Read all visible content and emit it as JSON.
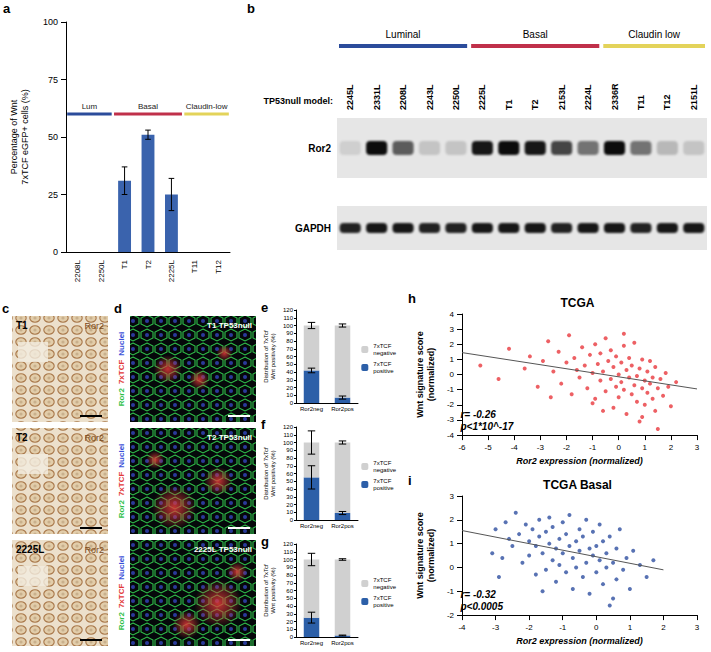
{
  "chart_data": [
    {
      "panel": "a",
      "type": "bar",
      "categories": [
        "2208L",
        "2250L",
        "T1",
        "T2",
        "2225L",
        "T11",
        "T12"
      ],
      "values": [
        0,
        0,
        31,
        51,
        25,
        0,
        0
      ],
      "errors": [
        0,
        0,
        6,
        2,
        7,
        0,
        0
      ],
      "color": "#3a63ad",
      "y_label": "Percentage of Wnt 7xTCF eGFP+ cells (%)",
      "ylim": [
        0,
        100
      ],
      "yticks": [
        0,
        25,
        50,
        75,
        100
      ],
      "grid": false,
      "groups": [
        {
          "label": "Lum",
          "color": "#2b4c9b",
          "from": "2208L",
          "to": "2250L",
          "y": 60
        },
        {
          "label": "Basal",
          "color": "#c0304a",
          "from": "T1",
          "to": "2225L",
          "y": 60
        },
        {
          "label": "Claudin-low",
          "color": "#e3d35a",
          "from": "T11",
          "to": "T12",
          "y": 60
        }
      ]
    },
    {
      "panel": "e",
      "type": "bar",
      "stacked": true,
      "legend": "right",
      "grid": false,
      "categories": [
        "Ror2neg",
        "Ror2pos"
      ],
      "series": [
        {
          "name": "7xTCF negative",
          "color": "#d0d0d0",
          "values": [
            58,
            93
          ],
          "errors": [
            4,
            2
          ]
        },
        {
          "name": "7xTCF positive",
          "color": "#2c5fa8",
          "values": [
            42,
            7
          ],
          "errors": [
            3,
            2
          ]
        }
      ],
      "y_label": "Distribution of 7xTcf Wnt positivity (%)",
      "ylim": [
        0,
        120
      ],
      "yticks": [
        0,
        10,
        20,
        30,
        40,
        50,
        60,
        70,
        80,
        90,
        100,
        110,
        120
      ]
    },
    {
      "panel": "f",
      "type": "bar",
      "stacked": true,
      "legend": "right",
      "grid": false,
      "categories": [
        "Ror2neg",
        "Ror2pos"
      ],
      "series": [
        {
          "name": "7xTCF negative",
          "color": "#d0d0d0",
          "values": [
            45,
            91
          ],
          "errors": [
            15,
            2
          ]
        },
        {
          "name": "7xTCF positive",
          "color": "#2c5fa8",
          "values": [
            55,
            9
          ],
          "errors": [
            15,
            2
          ]
        }
      ],
      "y_label": "Distribution of 7xTcf Wnt positivity (%)",
      "ylim": [
        0,
        120
      ],
      "yticks": [
        0,
        10,
        20,
        30,
        40,
        50,
        60,
        70,
        80,
        90,
        100,
        110,
        120
      ]
    },
    {
      "panel": "g",
      "type": "bar",
      "stacked": true,
      "legend": "right",
      "grid": false,
      "categories": [
        "Ror2neg",
        "Ror2pos"
      ],
      "series": [
        {
          "name": "7xTCF negative",
          "color": "#d0d0d0",
          "values": [
            75,
            98
          ],
          "errors": [
            8,
            1
          ]
        },
        {
          "name": "7xTCF positive",
          "color": "#2c5fa8",
          "values": [
            25,
            2
          ],
          "errors": [
            7,
            0.5
          ]
        }
      ],
      "y_label": "Distribution of 7xTcf Wnt positivity (%)",
      "ylim": [
        0,
        120
      ],
      "yticks": [
        0,
        10,
        20,
        30,
        40,
        50,
        60,
        70,
        80,
        90,
        100,
        110,
        120
      ]
    },
    {
      "panel": "h",
      "type": "scatter",
      "title": "TCGA",
      "grid": false,
      "marker": "circle",
      "color": "#e8383d",
      "x_label": "Ror2 expression (normalized)",
      "y_label": "Wnt signature score (normalized)",
      "xlim": [
        -6,
        3
      ],
      "xticks": [
        -6,
        -5,
        -4,
        -3,
        -2,
        -1,
        0,
        1,
        2,
        3
      ],
      "ylim": [
        -4,
        4
      ],
      "yticks": [
        -4,
        -3,
        -2,
        -1,
        0,
        1,
        2,
        3,
        4
      ],
      "x": [
        -5.3,
        -4.6,
        -4.2,
        -3.6,
        -3.4,
        -3.1,
        -2.9,
        -2.7,
        -2.5,
        -2.3,
        -2.2,
        -2.0,
        -1.9,
        -1.8,
        -1.7,
        -1.6,
        -1.5,
        -1.4,
        -1.3,
        -1.2,
        -1.1,
        -1.0,
        -0.9,
        -0.9,
        -0.8,
        -0.7,
        -0.7,
        -0.6,
        -0.5,
        -0.5,
        -0.4,
        -0.3,
        -0.3,
        -0.2,
        -0.2,
        -0.1,
        -0.1,
        0.0,
        0.0,
        0.1,
        0.1,
        0.2,
        0.2,
        0.3,
        0.3,
        0.4,
        0.4,
        0.5,
        0.5,
        0.6,
        0.6,
        0.7,
        0.7,
        0.8,
        0.8,
        0.9,
        0.9,
        1.0,
        1.0,
        1.1,
        1.1,
        1.2,
        1.2,
        1.3,
        1.3,
        1.4,
        1.4,
        1.5,
        1.5,
        1.6,
        1.7,
        1.8,
        1.9,
        2.0,
        2.2,
        -0.6,
        -1.0,
        0.2,
        -2.6,
        0.9
      ],
      "values": [
        0.6,
        -0.3,
        1.7,
        0.4,
        1.2,
        -0.8,
        0.9,
        2.2,
        0.2,
        1.5,
        -0.6,
        0.8,
        2.6,
        -1.3,
        1.1,
        0.3,
        -0.2,
        1.8,
        0.6,
        -0.9,
        1.3,
        0.1,
        2.0,
        -1.6,
        0.7,
        -0.4,
        1.4,
        0.2,
        -1.1,
        2.4,
        0.9,
        -0.3,
        1.6,
        -2.2,
        0.5,
        -0.8,
        1.2,
        0.0,
        -1.5,
        0.8,
        -0.5,
        1.9,
        -1.0,
        0.3,
        -2.6,
        -0.2,
        1.1,
        -1.3,
        0.6,
        -0.7,
        2.1,
        -0.1,
        -1.8,
        0.4,
        -3.1,
        -0.9,
        1.0,
        -0.4,
        -2.0,
        0.2,
        -1.2,
        -0.6,
        0.9,
        -1.6,
        -0.2,
        -2.4,
        0.5,
        -0.9,
        -3.6,
        -0.3,
        -1.4,
        0.1,
        -0.8,
        -2.1,
        -0.5,
        -2.4,
        -1.9,
        2.7,
        -1.5,
        -2.8
      ],
      "trend_line": {
        "x": [
          -6,
          3
        ],
        "values": [
          1.45,
          -0.95
        ]
      },
      "annotations": [
        "r= -0.26",
        "p<1*10^-17"
      ]
    },
    {
      "panel": "i",
      "type": "scatter",
      "title": "TCGA Basal",
      "grid": false,
      "marker": "circle",
      "color": "#2e4fa0",
      "x_label": "Ror2 expression (normalized)",
      "y_label": "Wnt signature score (normalized)",
      "xlim": [
        -4,
        3
      ],
      "xticks": [
        -4,
        -3,
        -2,
        -1,
        0,
        1,
        2,
        3
      ],
      "ylim": [
        -2,
        3
      ],
      "yticks": [
        -2,
        -1,
        0,
        1,
        2,
        3
      ],
      "x": [
        -3.1,
        -3.0,
        -2.8,
        -2.7,
        -2.6,
        -2.5,
        -2.4,
        -2.3,
        -2.2,
        -2.1,
        -2.0,
        -2.0,
        -1.9,
        -1.8,
        -1.8,
        -1.7,
        -1.7,
        -1.6,
        -1.5,
        -1.5,
        -1.4,
        -1.4,
        -1.3,
        -1.3,
        -1.2,
        -1.2,
        -1.1,
        -1.1,
        -1.0,
        -1.0,
        -0.9,
        -0.9,
        -0.8,
        -0.8,
        -0.7,
        -0.7,
        -0.6,
        -0.6,
        -0.5,
        -0.5,
        -0.4,
        -0.4,
        -0.3,
        -0.3,
        -0.2,
        -0.2,
        -0.1,
        -0.1,
        0.0,
        0.0,
        0.1,
        0.1,
        0.2,
        0.2,
        0.3,
        0.3,
        0.4,
        0.4,
        0.5,
        0.6,
        0.6,
        0.7,
        0.8,
        0.9,
        1.0,
        1.1,
        1.3,
        1.5,
        1.7,
        -2.9,
        -1.6,
        0.5
      ],
      "values": [
        0.6,
        1.6,
        0.4,
        1.9,
        1.2,
        0.9,
        2.3,
        1.4,
        0.2,
        1.8,
        1.1,
        0.5,
        1.6,
        -0.3,
        0.9,
        2.0,
        1.3,
        0.6,
        1.5,
        -0.1,
        1.0,
        2.1,
        0.3,
        1.7,
        0.8,
        -0.6,
        1.2,
        0.1,
        1.9,
        0.6,
        -0.2,
        1.4,
        0.9,
        2.2,
        0.4,
        -0.9,
        1.1,
        0.0,
        1.6,
        0.7,
        -0.4,
        1.3,
        0.2,
        2.0,
        0.8,
        -1.1,
        0.5,
        1.5,
        -0.2,
        0.9,
        1.8,
        0.3,
        -0.7,
        1.1,
        0.0,
        0.6,
        -1.6,
        1.3,
        0.2,
        -0.5,
        0.8,
        1.6,
        -0.1,
        0.4,
        -0.9,
        0.7,
        0.1,
        -0.4,
        0.3,
        -0.4,
        -1.0,
        -1.3
      ],
      "trend_line": {
        "x": [
          -4,
          2
        ],
        "values": [
          1.55,
          -0.1
        ]
      },
      "annotations": [
        "r= -0.32",
        "p<0.0005"
      ]
    }
  ],
  "blot": {
    "panel": "b",
    "model_label": "TP53null model:",
    "lanes": [
      "2245L",
      "2331L",
      "2208L",
      "2243L",
      "2250L",
      "2225L",
      "T1",
      "T2",
      "2153L",
      "2224L",
      "2336R",
      "T11",
      "T12",
      "2151L"
    ],
    "groups": [
      {
        "label": "Luminal",
        "color": "#2b4c9b",
        "from": "2245L",
        "to": "2250L"
      },
      {
        "label": "Basal",
        "color": "#c0304a",
        "from": "2225L",
        "to": "2224L"
      },
      {
        "label": "Claudin low",
        "color": "#e3d35a",
        "from": "2336R",
        "to": "2151L"
      }
    ],
    "rows": [
      {
        "name": "Ror2",
        "intensity": [
          0.1,
          0.95,
          0.6,
          0.15,
          0.15,
          0.9,
          0.95,
          0.9,
          0.7,
          0.5,
          0.95,
          0.5,
          0.2,
          0.15
        ]
      },
      {
        "name": "GAPDH",
        "intensity": [
          0.85,
          0.9,
          0.9,
          0.85,
          0.85,
          0.9,
          0.9,
          0.9,
          0.85,
          0.9,
          0.9,
          0.85,
          0.9,
          0.9
        ]
      }
    ]
  },
  "micrographs": {
    "c": {
      "panel": "c",
      "stain": "Ror2",
      "samples": [
        "T1",
        "T2",
        "2225L"
      ]
    },
    "d": {
      "panel": "d",
      "channels": [
        {
          "name": "Ror2",
          "color": "#2fbf4a"
        },
        {
          "name": "7xTCF",
          "color": "#e23a3a"
        },
        {
          "name": "Nuclei",
          "color": "#3a4fd8"
        }
      ],
      "titles": [
        "T1 TP53null",
        "T2 TP53null",
        "2225L TP53null"
      ]
    }
  }
}
